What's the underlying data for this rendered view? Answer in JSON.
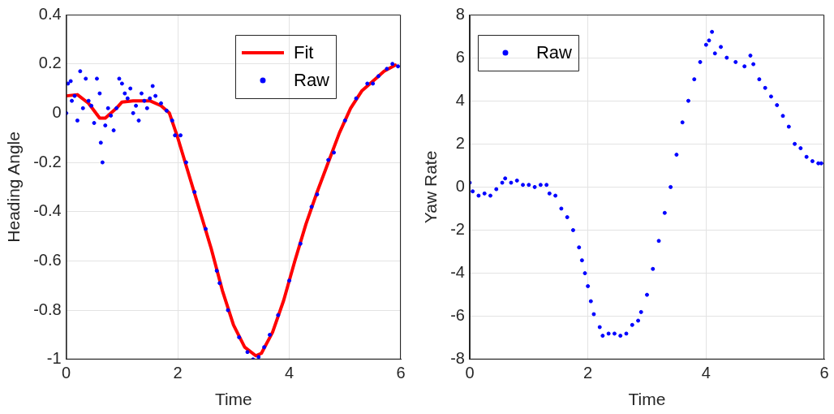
{
  "chart_data": [
    {
      "type": "scatter",
      "xlabel": "Time",
      "ylabel": "Heading Angle",
      "xlim": [
        0,
        6
      ],
      "xticks": [
        0,
        2,
        4,
        6
      ],
      "ylim": [
        -1,
        0.4
      ],
      "yticks": [
        -1,
        -0.8,
        -0.6,
        -0.4,
        -0.2,
        0,
        0.2,
        0.4
      ],
      "grid": true,
      "legend": "top right",
      "series": [
        {
          "name": "Fit",
          "type": "line",
          "color": "#ff0000",
          "x": [
            0,
            0.2,
            0.4,
            0.6,
            0.7,
            0.9,
            1.0,
            1.2,
            1.5,
            1.7,
            1.85,
            2.0,
            2.2,
            2.4,
            2.6,
            2.8,
            3.0,
            3.2,
            3.4,
            3.5,
            3.7,
            3.9,
            4.1,
            4.3,
            4.5,
            4.7,
            4.9,
            5.1,
            5.3,
            5.5,
            5.7,
            5.9
          ],
          "values": [
            0.07,
            0.075,
            0.04,
            -0.02,
            -0.02,
            0.02,
            0.045,
            0.05,
            0.05,
            0.03,
            0.0,
            -0.1,
            -0.25,
            -0.4,
            -0.55,
            -0.72,
            -0.86,
            -0.95,
            -0.985,
            -0.975,
            -0.89,
            -0.76,
            -0.6,
            -0.45,
            -0.32,
            -0.2,
            -0.08,
            0.02,
            0.09,
            0.13,
            0.17,
            0.195
          ]
        },
        {
          "name": "Raw",
          "type": "scatter",
          "color": "#0000ff",
          "x": [
            0,
            0.03,
            0.08,
            0.1,
            0.15,
            0.2,
            0.25,
            0.3,
            0.35,
            0.4,
            0.45,
            0.5,
            0.55,
            0.6,
            0.62,
            0.65,
            0.7,
            0.75,
            0.8,
            0.85,
            0.9,
            0.95,
            1.0,
            1.05,
            1.1,
            1.15,
            1.2,
            1.25,
            1.3,
            1.35,
            1.4,
            1.45,
            1.5,
            1.55,
            1.6,
            1.7,
            1.8,
            1.9,
            1.95,
            2.05,
            2.15,
            2.3,
            2.5,
            2.7,
            2.75,
            2.9,
            3.1,
            3.25,
            3.35,
            3.45,
            3.55,
            3.65,
            3.8,
            4.0,
            4.2,
            4.4,
            4.5,
            4.7,
            4.8,
            5.0,
            5.2,
            5.4,
            5.5,
            5.6,
            5.75,
            5.85,
            5.95
          ],
          "values": [
            0.0,
            0.12,
            0.13,
            0.05,
            0.07,
            -0.03,
            0.17,
            0.02,
            0.14,
            0.05,
            0.03,
            -0.04,
            0.14,
            0.08,
            -0.12,
            -0.2,
            -0.05,
            0.02,
            -0.01,
            -0.07,
            0.02,
            0.14,
            0.12,
            0.08,
            0.06,
            0.1,
            0.0,
            0.03,
            -0.03,
            0.08,
            0.05,
            0.02,
            0.06,
            0.11,
            0.07,
            0.04,
            0.01,
            -0.03,
            -0.09,
            -0.09,
            -0.2,
            -0.32,
            -0.47,
            -0.64,
            -0.69,
            -0.8,
            -0.91,
            -0.97,
            -1.0,
            -0.99,
            -0.95,
            -0.9,
            -0.82,
            -0.68,
            -0.53,
            -0.38,
            -0.33,
            -0.19,
            -0.16,
            -0.03,
            0.06,
            0.12,
            0.12,
            0.15,
            0.18,
            0.2,
            0.19
          ]
        }
      ]
    },
    {
      "type": "scatter",
      "xlabel": "Time",
      "ylabel": "Yaw Rate",
      "xlim": [
        0,
        6
      ],
      "xticks": [
        0,
        2,
        4,
        6
      ],
      "ylim": [
        -8,
        8
      ],
      "yticks": [
        -8,
        -6,
        -4,
        -2,
        0,
        2,
        4,
        6,
        8
      ],
      "grid": true,
      "legend": "top left",
      "series": [
        {
          "name": "Raw",
          "type": "scatter",
          "color": "#0000ff",
          "x": [
            0,
            0.05,
            0.15,
            0.25,
            0.35,
            0.45,
            0.55,
            0.6,
            0.7,
            0.8,
            0.9,
            1.0,
            1.1,
            1.2,
            1.3,
            1.35,
            1.45,
            1.55,
            1.65,
            1.75,
            1.85,
            1.9,
            1.95,
            2.0,
            2.05,
            2.1,
            2.2,
            2.25,
            2.35,
            2.45,
            2.55,
            2.65,
            2.75,
            2.85,
            2.9,
            3.0,
            3.1,
            3.2,
            3.3,
            3.4,
            3.5,
            3.6,
            3.7,
            3.8,
            3.9,
            4.0,
            4.05,
            4.1,
            4.15,
            4.25,
            4.35,
            4.5,
            4.65,
            4.75,
            4.8,
            4.9,
            5.0,
            5.1,
            5.2,
            5.3,
            5.4,
            5.5,
            5.6,
            5.7,
            5.8,
            5.9,
            5.95
          ],
          "values": [
            0.2,
            -0.2,
            -0.4,
            -0.3,
            -0.4,
            -0.1,
            0.2,
            0.4,
            0.2,
            0.3,
            0.1,
            0.1,
            0.0,
            0.1,
            0.1,
            -0.3,
            -0.4,
            -1.0,
            -1.4,
            -2.0,
            -2.8,
            -3.4,
            -4.0,
            -4.6,
            -5.3,
            -5.9,
            -6.5,
            -6.9,
            -6.8,
            -6.8,
            -6.9,
            -6.8,
            -6.4,
            -6.2,
            -5.8,
            -5.0,
            -3.8,
            -2.5,
            -1.2,
            0.0,
            1.5,
            3.0,
            4.0,
            5.0,
            5.8,
            6.6,
            6.8,
            7.2,
            6.2,
            6.5,
            6.0,
            5.8,
            5.6,
            6.1,
            5.7,
            5.0,
            4.6,
            4.2,
            3.8,
            3.3,
            2.8,
            2.0,
            1.8,
            1.4,
            1.2,
            1.1,
            1.1
          ]
        }
      ]
    }
  ]
}
